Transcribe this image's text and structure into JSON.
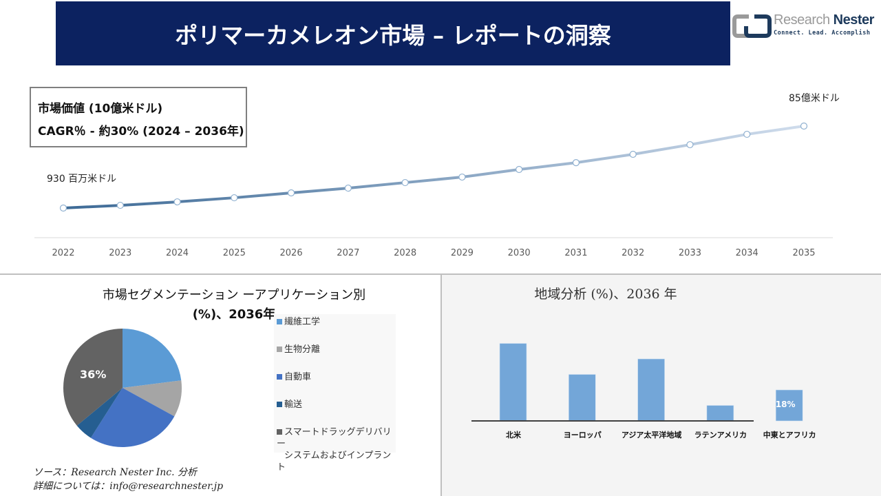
{
  "header": {
    "title": "ポリマーカメレオン市場 – レポートの洞察"
  },
  "logo": {
    "name_light": "Research",
    "name_dark": "Nester",
    "tagline": "Connect. Lead. Accomplish"
  },
  "kpi": {
    "line1": "市場価値 (10億米ドル)",
    "line2": "CAGR％ - 約30% (2024 – 2036年)"
  },
  "colors": {
    "header": "#0c2260",
    "line_start": "#3d6a96",
    "line_end": "#cfdcec",
    "bar": "#73a6d8"
  },
  "chart_data": [
    {
      "type": "line",
      "x": [
        "2022",
        "2023",
        "2024",
        "2025",
        "2026",
        "2027",
        "2028",
        "2029",
        "2030",
        "2031",
        "2032",
        "2033",
        "2034",
        "2035"
      ],
      "values": [
        0.93,
        1.18,
        1.5,
        1.88,
        2.33,
        2.77,
        3.28,
        3.79,
        4.49,
        5.12,
        5.89,
        6.78,
        7.74,
        8.5
      ],
      "start_label": "930 百万米ドル",
      "end_label": "85億米ドル",
      "grid": false
    },
    {
      "type": "pie",
      "title": "市場セグメンテーション ーアプリケーション別",
      "title2": "(%)、2036年",
      "categories": [
        "繊維工学",
        "生物分離",
        "自動車",
        "輸送",
        "スマートドラッグデリバリーシステムおよびインプラント"
      ],
      "legend_lines": [
        [
          "繊維工学"
        ],
        [
          "生物分離"
        ],
        [
          "自動車"
        ],
        [
          "輸送"
        ],
        [
          "スマートドラッグデリバリー",
          "システムおよびインプラント"
        ]
      ],
      "values": [
        23,
        10,
        26,
        5,
        36
      ],
      "colors": [
        "#5b9bd5",
        "#a5a5a5",
        "#4472c4",
        "#255e91",
        "#636363"
      ],
      "data_labels": [
        "",
        "",
        "",
        "",
        "36%"
      ],
      "legend": "right"
    },
    {
      "type": "bar",
      "title": "地域分析 (%)、2036 年",
      "categories": [
        "北米",
        "ヨーロッパ",
        "アジア太平洋地域",
        "ラテンアメリカ",
        "中東とアフリカ"
      ],
      "values": [
        45,
        27,
        36,
        9,
        18
      ],
      "data_labels": [
        "",
        "",
        "",
        "",
        "18%"
      ]
    }
  ],
  "footer": {
    "source": "ソース：Research Nester Inc. 分析",
    "contact": "詳細については：info@researchnester.jp"
  }
}
